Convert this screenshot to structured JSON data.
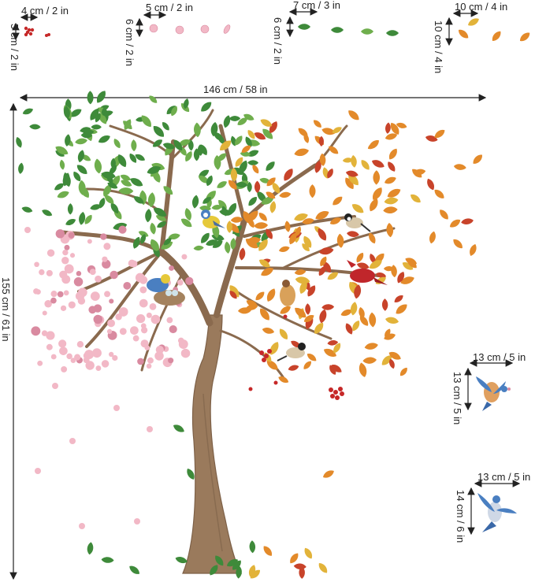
{
  "dimensions": {
    "sticker_berries": {
      "width": "4 cm / 2 in",
      "height": "5 cm / 2 in"
    },
    "sticker_blossoms": {
      "width": "5 cm / 2 in",
      "height": "6 cm / 2 in"
    },
    "sticker_green_leaves": {
      "width": "7 cm / 3 in",
      "height": "6 cm / 2 in"
    },
    "sticker_autumn_leaves": {
      "width": "10 cm / 4 in",
      "height": "10 cm / 4 in"
    },
    "tree": {
      "width": "146 cm / 58 in",
      "height": "155 cm / 61 in"
    },
    "bird_1": {
      "width": "13 cm / 5 in",
      "height": "13 cm / 5 in"
    },
    "bird_2": {
      "width": "13 cm / 5 in",
      "height": "14 cm / 6 in"
    }
  },
  "colors": {
    "trunk": "#9a7a5c",
    "trunk_dark": "#7d6047",
    "leaf_green": "#3e8a3a",
    "leaf_light_green": "#6fae4d",
    "leaf_orange": "#e38a2a",
    "leaf_red": "#c8432a",
    "leaf_yellow": "#e2b33a",
    "blossom_pink": "#f2b8c6",
    "blossom_dark": "#d98aa0",
    "berry_red": "#c62828",
    "bird_blue": "#4a7fc1",
    "cardinal_red": "#c0262b"
  }
}
